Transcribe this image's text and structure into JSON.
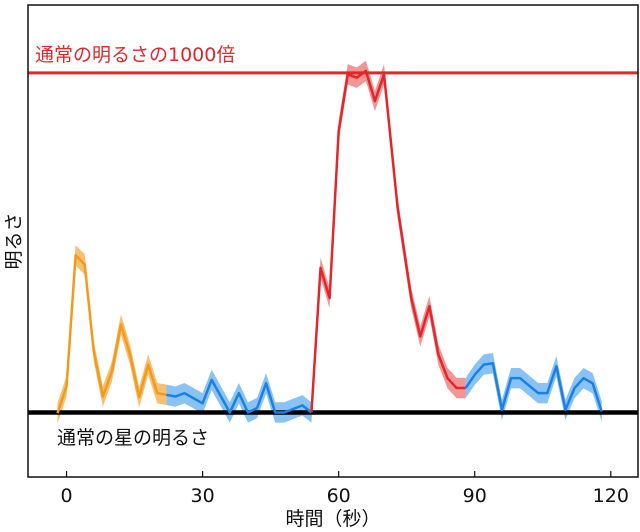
{
  "chart_data": {
    "type": "line",
    "title": "",
    "xlabel": "時間（秒）",
    "ylabel": "明るさ",
    "xlim": [
      -8.5,
      126
    ],
    "ylim": [
      -19,
      120
    ],
    "xticks": [
      "0",
      "30",
      "60",
      "90",
      "120"
    ],
    "xtick_values": [
      0,
      30,
      60,
      90,
      120
    ],
    "yticks": [],
    "grid": false,
    "reference_lines": [
      {
        "label": "通常の明るさの1000倍",
        "y": 100,
        "color": "#e4262a"
      },
      {
        "label": "通常の星の明るさ",
        "y": 0,
        "color": "#000000"
      }
    ],
    "series": [
      {
        "color": "#f39a1e",
        "band_color": "#f7b85e",
        "x": [
          -2,
          0,
          2,
          4,
          6,
          8,
          10,
          12,
          14,
          16,
          18,
          20,
          22
        ],
        "y": [
          -0.2,
          7.7,
          46.3,
          43.6,
          18,
          4.7,
          12.1,
          25.9,
          17,
          4.5,
          14.1,
          5.7,
          5.2
        ]
      },
      {
        "color": "#1a80e6",
        "band_color": "#7cbcf5",
        "x": [
          22,
          24,
          26,
          30,
          32,
          36,
          38,
          40,
          42,
          44,
          46,
          48,
          52,
          54
        ],
        "y": [
          5.2,
          4.7,
          5.7,
          2.7,
          9.6,
          0,
          5.7,
          0,
          1.3,
          8.6,
          0,
          0,
          2.1,
          0
        ]
      },
      {
        "color": "#e4262a",
        "band_color": "#f08a8a",
        "x": [
          54,
          56,
          58,
          60,
          62,
          64,
          66,
          68,
          70,
          73,
          76,
          78,
          80,
          82,
          84,
          86,
          88
        ],
        "y": [
          0,
          42.6,
          33.7,
          82.9,
          99.6,
          98.6,
          100.6,
          91.7,
          99.6,
          60.3,
          33.7,
          22.4,
          31.3,
          17,
          10.1,
          7.2,
          7.2
        ]
      },
      {
        "color": "#1a80e6",
        "band_color": "#7cbcf5",
        "x": [
          88,
          90,
          92,
          94,
          96,
          98,
          100,
          104,
          106,
          108,
          110,
          112,
          114,
          116,
          118
        ],
        "y": [
          7.2,
          11.1,
          14.1,
          14.5,
          0.8,
          10.1,
          10.1,
          5.7,
          5.7,
          13.6,
          0.8,
          7.2,
          10.1,
          8.6,
          0.3
        ]
      }
    ],
    "band_halfwidth": 3
  }
}
